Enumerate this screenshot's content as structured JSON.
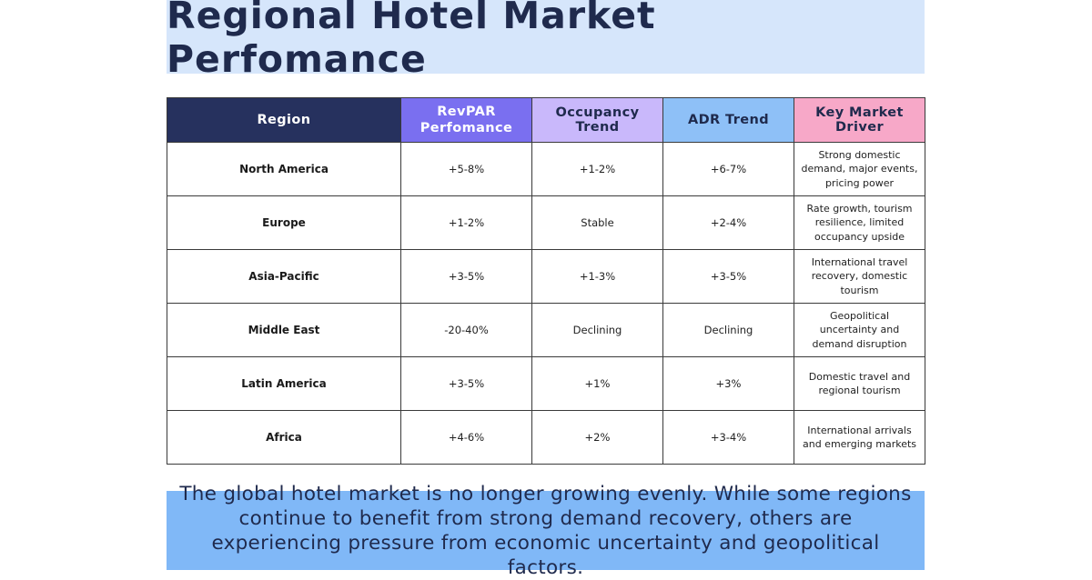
{
  "title": "Regional Hotel Market Perfomance",
  "table": {
    "headers": {
      "region": "Region",
      "revpar_line1": "RevPAR",
      "revpar_line2": "Perfomance",
      "occupancy": "Occupancy Trend",
      "adr": "ADR Trend",
      "driver": "Key Market Driver"
    },
    "header_colors": {
      "region": "#26315e",
      "revpar": "#7a6ff0",
      "occupancy": "#c9b8fb",
      "adr": "#8ec0f7",
      "driver": "#f7a8c8"
    },
    "rows": [
      {
        "region": "North America",
        "revpar": "+5-8%",
        "occupancy": "+1-2%",
        "adr": "+6-7%",
        "driver": "Strong domestic demand, major events, pricing power"
      },
      {
        "region": "Europe",
        "revpar": "+1-2%",
        "occupancy": "Stable",
        "adr": "+2-4%",
        "driver": "Rate growth, tourism resilience, limited occupancy upside"
      },
      {
        "region": "Asia-Pacific",
        "revpar": "+3-5%",
        "occupancy": "+1-3%",
        "adr": "+3-5%",
        "driver": "International travel recovery, domestic tourism"
      },
      {
        "region": "Middle East",
        "revpar": "-20-40%",
        "occupancy": "Declining",
        "adr": "Declining",
        "driver": "Geopolitical uncertainty and demand disruption"
      },
      {
        "region": "Latin America",
        "revpar": "+3-5%",
        "occupancy": "+1%",
        "adr": "+3%",
        "driver": "Domestic travel and regional tourism"
      },
      {
        "region": "Africa",
        "revpar": "+4-6%",
        "occupancy": "+2%",
        "adr": "+3-4%",
        "driver": "International arrivals and emerging markets"
      }
    ]
  },
  "summary": "The global hotel market is no longer growing evenly. While some regions continue to benefit from strong demand recovery, others are experiencing pressure from economic uncertainty and geopolitical factors.",
  "colors": {
    "title_background": "#d6e6fb",
    "summary_background": "#80b8f7",
    "text_dark": "#1f2a4d"
  }
}
